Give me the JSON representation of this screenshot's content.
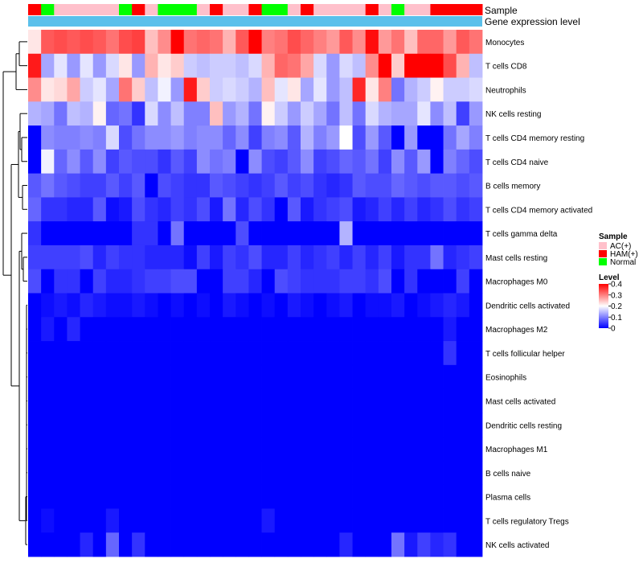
{
  "chart_data": {
    "type": "heatmap",
    "annotation_labels": {
      "sample": "Sample",
      "expression": "Gene expression level"
    },
    "rows": [
      "Monocytes",
      "T cells CD8",
      "Neutrophils",
      "NK cells resting",
      "T cells CD4 memory resting",
      "T cells CD4 naive",
      "B cells memory",
      "T cells CD4 memory activated",
      "T cells gamma delta",
      "Mast cells resting",
      "Macrophages M0",
      "Dendritic cells activated",
      "Macrophages M2",
      "T cells follicular helper",
      "Eosinophils",
      "Mast cells activated",
      "Dendritic cells resting",
      "Macrophages M1",
      "B cells naive",
      "Plasma cells",
      "T cells regulatory  Tregs",
      "NK cells activated"
    ],
    "column_groups": [
      "HAM(+)",
      "Normal",
      "AC(+)",
      "AC(+)",
      "AC(+)",
      "AC(+)",
      "AC(+)",
      "Normal",
      "HAM(+)",
      "AC(+)",
      "Normal",
      "Normal",
      "Normal",
      "AC(+)",
      "HAM(+)",
      "AC(+)",
      "AC(+)",
      "HAM(+)",
      "Normal",
      "Normal",
      "AC(+)",
      "HAM(+)",
      "AC(+)",
      "AC(+)",
      "AC(+)",
      "AC(+)",
      "HAM(+)",
      "AC(+)",
      "Normal",
      "AC(+)",
      "AC(+)",
      "HAM(+)",
      "HAM(+)",
      "HAM(+)",
      "HAM(+)"
    ],
    "values": [
      [
        0.22,
        0.33,
        0.34,
        0.33,
        0.34,
        0.33,
        0.31,
        0.34,
        0.35,
        0.25,
        0.29,
        0.4,
        0.31,
        0.32,
        0.31,
        0.26,
        0.33,
        0.4,
        0.3,
        0.31,
        0.34,
        0.32,
        0.3,
        0.28,
        0.33,
        0.29,
        0.39,
        0.28,
        0.31,
        0.25,
        0.32,
        0.32,
        0.28,
        0.33,
        0.31
      ],
      [
        0.38,
        0.13,
        0.18,
        0.12,
        0.18,
        0.12,
        0.17,
        0.22,
        0.12,
        0.26,
        0.22,
        0.24,
        0.16,
        0.15,
        0.16,
        0.16,
        0.15,
        0.17,
        0.26,
        0.32,
        0.31,
        0.27,
        0.17,
        0.12,
        0.17,
        0.15,
        0.29,
        0.4,
        0.24,
        0.4,
        0.4,
        0.4,
        0.34,
        0.26,
        0.15
      ],
      [
        0.29,
        0.22,
        0.23,
        0.27,
        0.16,
        0.18,
        0.13,
        0.31,
        0.24,
        0.15,
        0.19,
        0.12,
        0.38,
        0.24,
        0.16,
        0.17,
        0.16,
        0.14,
        0.25,
        0.18,
        0.22,
        0.13,
        0.18,
        0.12,
        0.15,
        0.37,
        0.22,
        0.3,
        0.09,
        0.14,
        0.16,
        0.21,
        0.16,
        0.16,
        0.17
      ],
      [
        0.14,
        0.13,
        0.09,
        0.15,
        0.14,
        0.21,
        0.08,
        0.09,
        0.04,
        0.17,
        0.11,
        0.15,
        0.1,
        0.1,
        0.25,
        0.12,
        0.14,
        0.09,
        0.21,
        0.16,
        0.12,
        0.16,
        0.13,
        0.09,
        0.15,
        0.09,
        0.17,
        0.14,
        0.13,
        0.13,
        0.18,
        0.11,
        0.15,
        0.05,
        0.12
      ],
      [
        0.0,
        0.11,
        0.1,
        0.1,
        0.11,
        0.1,
        0.17,
        0.06,
        0.09,
        0.11,
        0.11,
        0.12,
        0.1,
        0.11,
        0.11,
        0.08,
        0.11,
        0.05,
        0.1,
        0.11,
        0.07,
        0.14,
        0.1,
        0.12,
        0.2,
        0.06,
        0.12,
        0.07,
        0.0,
        0.12,
        0.0,
        0.0,
        0.09,
        0.13,
        0.1
      ],
      [
        0.0,
        0.19,
        0.08,
        0.11,
        0.07,
        0.11,
        0.05,
        0.07,
        0.06,
        0.06,
        0.04,
        0.07,
        0.05,
        0.11,
        0.09,
        0.1,
        0.0,
        0.11,
        0.06,
        0.05,
        0.07,
        0.11,
        0.05,
        0.06,
        0.08,
        0.07,
        0.09,
        0.05,
        0.11,
        0.07,
        0.12,
        0.0,
        0.1,
        0.08,
        0.06
      ],
      [
        0.07,
        0.09,
        0.07,
        0.06,
        0.05,
        0.05,
        0.07,
        0.05,
        0.07,
        0.0,
        0.06,
        0.05,
        0.04,
        0.04,
        0.07,
        0.06,
        0.05,
        0.04,
        0.05,
        0.07,
        0.05,
        0.06,
        0.04,
        0.03,
        0.04,
        0.07,
        0.06,
        0.06,
        0.08,
        0.07,
        0.06,
        0.07,
        0.07,
        0.06,
        0.07
      ],
      [
        0.08,
        0.04,
        0.04,
        0.03,
        0.03,
        0.07,
        0.01,
        0.02,
        0.06,
        0.04,
        0.03,
        0.05,
        0.04,
        0.06,
        0.02,
        0.09,
        0.03,
        0.06,
        0.04,
        0.0,
        0.07,
        0.02,
        0.04,
        0.05,
        0.06,
        0.02,
        0.03,
        0.05,
        0.03,
        0.05,
        0.03,
        0.04,
        0.06,
        0.04,
        0.05
      ],
      [
        0.04,
        0.0,
        0.0,
        0.0,
        0.0,
        0.0,
        0.0,
        0.0,
        0.04,
        0.04,
        0.0,
        0.09,
        0.0,
        0.0,
        0.0,
        0.0,
        0.06,
        0.0,
        0.0,
        0.0,
        0.0,
        0.0,
        0.0,
        0.0,
        0.14,
        0.0,
        0.0,
        0.0,
        0.0,
        0.0,
        0.0,
        0.0,
        0.0,
        0.0,
        0.0
      ],
      [
        0.05,
        0.05,
        0.05,
        0.05,
        0.06,
        0.03,
        0.05,
        0.04,
        0.04,
        0.03,
        0.03,
        0.03,
        0.01,
        0.05,
        0.02,
        0.05,
        0.04,
        0.06,
        0.03,
        0.03,
        0.05,
        0.03,
        0.04,
        0.05,
        0.03,
        0.05,
        0.03,
        0.05,
        0.02,
        0.04,
        0.04,
        0.09,
        0.03,
        0.04,
        0.05
      ],
      [
        0.06,
        0.0,
        0.04,
        0.04,
        0.0,
        0.05,
        0.03,
        0.03,
        0.04,
        0.05,
        0.05,
        0.06,
        0.06,
        0.0,
        0.0,
        0.05,
        0.05,
        0.03,
        0.0,
        0.06,
        0.05,
        0.04,
        0.04,
        0.04,
        0.05,
        0.05,
        0.04,
        0.06,
        0.0,
        0.04,
        0.0,
        0.0,
        0.0,
        0.05,
        0.0
      ],
      [
        0.0,
        0.01,
        0.02,
        0.01,
        0.03,
        0.02,
        0.01,
        0.01,
        0.02,
        0.01,
        0.0,
        0.01,
        0.0,
        0.01,
        0.0,
        0.02,
        0.01,
        0.0,
        0.01,
        0.0,
        0.02,
        0.01,
        0.0,
        0.01,
        0.02,
        0.0,
        0.01,
        0.01,
        0.02,
        0.0,
        0.01,
        0.02,
        0.03,
        0.02,
        0.0
      ],
      [
        0.0,
        0.02,
        0.0,
        0.03,
        0.0,
        0.0,
        0.0,
        0.0,
        0.0,
        0.0,
        0.0,
        0.0,
        0.0,
        0.0,
        0.0,
        0.0,
        0.0,
        0.0,
        0.0,
        0.0,
        0.0,
        0.0,
        0.0,
        0.0,
        0.0,
        0.0,
        0.0,
        0.0,
        0.0,
        0.0,
        0.0,
        0.0,
        0.02,
        0.0,
        0.0
      ],
      [
        0.0,
        0.0,
        0.0,
        0.0,
        0.0,
        0.0,
        0.0,
        0.0,
        0.0,
        0.0,
        0.0,
        0.0,
        0.0,
        0.0,
        0.0,
        0.0,
        0.0,
        0.0,
        0.0,
        0.0,
        0.0,
        0.0,
        0.0,
        0.0,
        0.0,
        0.0,
        0.0,
        0.0,
        0.0,
        0.0,
        0.0,
        0.0,
        0.04,
        0.0,
        0.0
      ],
      [
        0.0,
        0.0,
        0.0,
        0.0,
        0.0,
        0.0,
        0.0,
        0.0,
        0.0,
        0.0,
        0.0,
        0.0,
        0.0,
        0.0,
        0.0,
        0.0,
        0.0,
        0.0,
        0.0,
        0.0,
        0.0,
        0.0,
        0.0,
        0.0,
        0.0,
        0.0,
        0.0,
        0.0,
        0.0,
        0.0,
        0.0,
        0.0,
        0.0,
        0.0,
        0.0
      ],
      [
        0.0,
        0.0,
        0.0,
        0.0,
        0.0,
        0.0,
        0.0,
        0.0,
        0.0,
        0.0,
        0.0,
        0.0,
        0.0,
        0.0,
        0.0,
        0.0,
        0.0,
        0.0,
        0.0,
        0.0,
        0.0,
        0.0,
        0.0,
        0.0,
        0.0,
        0.0,
        0.0,
        0.0,
        0.0,
        0.0,
        0.0,
        0.0,
        0.0,
        0.0,
        0.0
      ],
      [
        0.0,
        0.0,
        0.0,
        0.0,
        0.0,
        0.0,
        0.0,
        0.0,
        0.0,
        0.0,
        0.0,
        0.0,
        0.0,
        0.0,
        0.0,
        0.0,
        0.0,
        0.0,
        0.0,
        0.0,
        0.0,
        0.0,
        0.0,
        0.0,
        0.0,
        0.0,
        0.0,
        0.0,
        0.0,
        0.0,
        0.0,
        0.0,
        0.0,
        0.0,
        0.0
      ],
      [
        0.0,
        0.0,
        0.0,
        0.0,
        0.0,
        0.0,
        0.0,
        0.0,
        0.0,
        0.0,
        0.0,
        0.0,
        0.0,
        0.0,
        0.0,
        0.0,
        0.0,
        0.0,
        0.0,
        0.0,
        0.0,
        0.0,
        0.0,
        0.0,
        0.0,
        0.0,
        0.0,
        0.0,
        0.0,
        0.0,
        0.0,
        0.0,
        0.0,
        0.0,
        0.0
      ],
      [
        0.0,
        0.0,
        0.0,
        0.0,
        0.0,
        0.0,
        0.0,
        0.0,
        0.0,
        0.0,
        0.0,
        0.0,
        0.0,
        0.0,
        0.0,
        0.0,
        0.0,
        0.0,
        0.0,
        0.0,
        0.0,
        0.0,
        0.0,
        0.0,
        0.0,
        0.0,
        0.0,
        0.0,
        0.0,
        0.0,
        0.0,
        0.0,
        0.0,
        0.0,
        0.0
      ],
      [
        0.0,
        0.0,
        0.0,
        0.0,
        0.0,
        0.0,
        0.0,
        0.0,
        0.0,
        0.0,
        0.0,
        0.0,
        0.0,
        0.0,
        0.0,
        0.0,
        0.0,
        0.0,
        0.0,
        0.0,
        0.0,
        0.0,
        0.0,
        0.0,
        0.0,
        0.0,
        0.0,
        0.0,
        0.0,
        0.0,
        0.0,
        0.0,
        0.0,
        0.0,
        0.0
      ],
      [
        0.0,
        0.01,
        0.0,
        0.0,
        0.0,
        0.0,
        0.02,
        0.0,
        0.0,
        0.0,
        0.0,
        0.0,
        0.0,
        0.0,
        0.0,
        0.0,
        0.0,
        0.0,
        0.02,
        0.0,
        0.0,
        0.0,
        0.0,
        0.0,
        0.0,
        0.0,
        0.0,
        0.0,
        0.0,
        0.0,
        0.0,
        0.0,
        0.0,
        0.0,
        0.0
      ],
      [
        0.0,
        0.0,
        0.0,
        0.0,
        0.03,
        0.0,
        0.08,
        0.0,
        0.04,
        0.0,
        0.0,
        0.0,
        0.0,
        0.0,
        0.0,
        0.0,
        0.0,
        0.0,
        0.0,
        0.0,
        0.0,
        0.0,
        0.0,
        0.0,
        0.03,
        0.0,
        0.0,
        0.0,
        0.09,
        0.02,
        0.05,
        0.03,
        0.04,
        0.0,
        0.0
      ]
    ],
    "color_scale": {
      "title": "Level",
      "min": 0,
      "max": 0.4,
      "ticks": [
        "0.4",
        "0.3",
        "0.2",
        "0.1",
        "0"
      ],
      "tick_values": [
        0.4,
        0.3,
        0.2,
        0.1,
        0
      ],
      "stops": [
        "#0000ff",
        "#ffffff",
        "#ff0000"
      ]
    },
    "legend": {
      "title": "Sample",
      "entries": [
        {
          "label": "AC(+)",
          "color": "#ffc0cb"
        },
        {
          "label": "HAM(+)",
          "color": "#ff0000"
        },
        {
          "label": "Normal",
          "color": "#00ff00"
        }
      ],
      "placement": "right"
    },
    "expression_bar_color": "#5bc0eb",
    "dendrogram_color": "#000000"
  }
}
